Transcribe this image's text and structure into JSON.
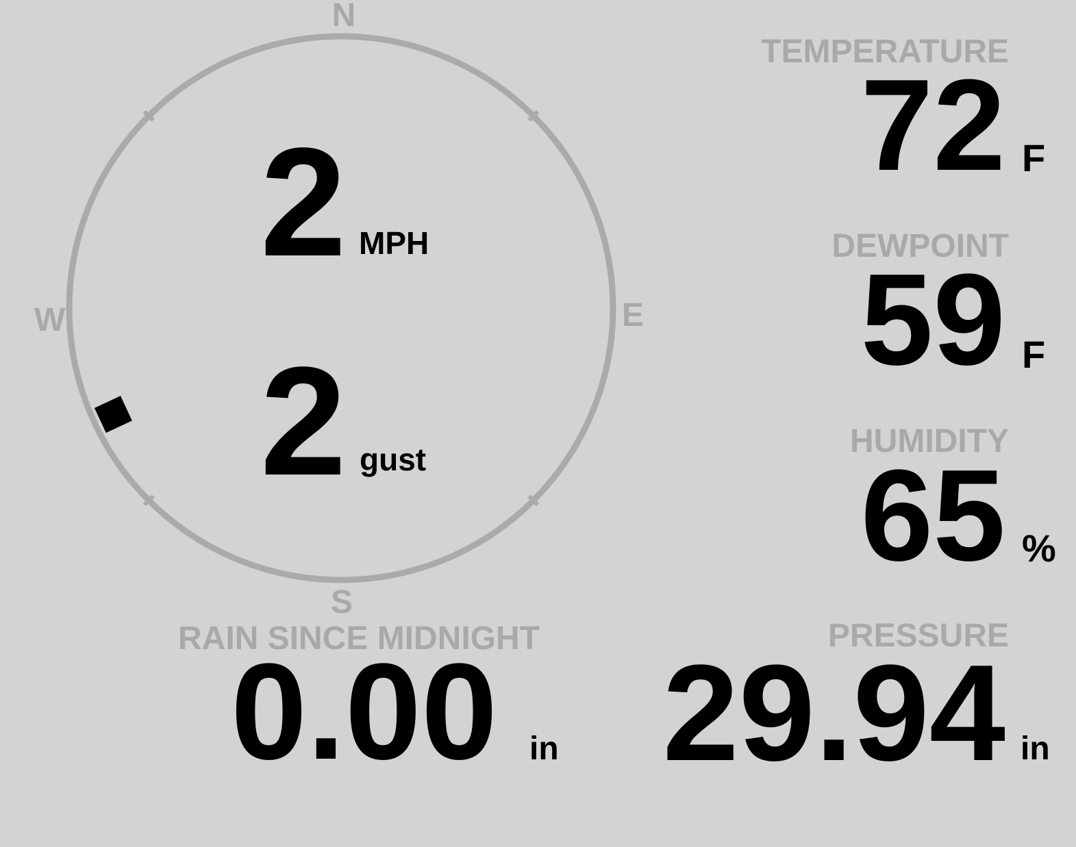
{
  "compass": {
    "north": "N",
    "south": "S",
    "east": "E",
    "west": "W",
    "wind_direction_deg": 245
  },
  "wind": {
    "speed": "2",
    "speed_unit": "MPH",
    "gust": "2",
    "gust_label": "gust"
  },
  "temperature": {
    "label": "TEMPERATURE",
    "value": "72",
    "unit": "F"
  },
  "dewpoint": {
    "label": "DEWPOINT",
    "value": "59",
    "unit": "F"
  },
  "humidity": {
    "label": "HUMIDITY",
    "value": "65",
    "unit": "%"
  },
  "pressure": {
    "label": "PRESSURE",
    "value": "29.94",
    "unit": "in"
  },
  "rain": {
    "label": "RAIN SINCE MIDNIGHT",
    "value": "0.00",
    "unit": "in"
  },
  "colors": {
    "background": "#d3d3d3",
    "label": "#a9a9a9",
    "value": "#000000"
  }
}
